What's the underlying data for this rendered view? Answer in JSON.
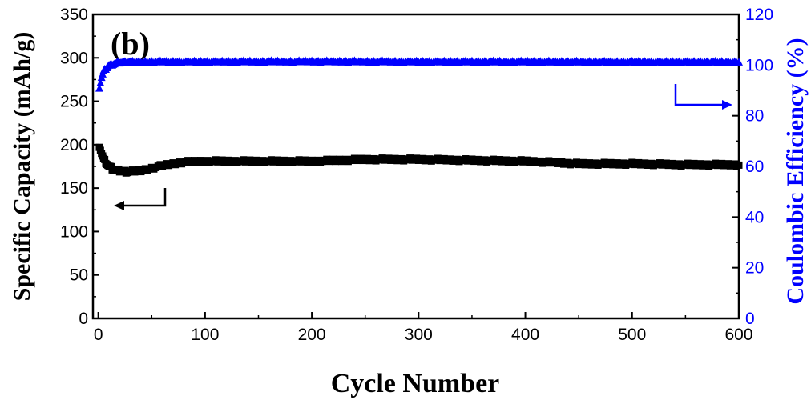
{
  "chart_data": {
    "type": "scatter",
    "panel_label": "(b)",
    "xlabel": "Cycle Number",
    "ylabel_left": "Specific Capacity (mAh/g)",
    "ylabel_right": "Coulombic Efficiency (%)",
    "xlim": [
      -5,
      600
    ],
    "ylim_left": [
      0,
      350
    ],
    "ylim_right": [
      0,
      120
    ],
    "x_ticks": [
      "0",
      "100",
      "200",
      "300",
      "400",
      "500",
      "600"
    ],
    "y_left_ticks": [
      "0",
      "50",
      "100",
      "150",
      "200",
      "250",
      "300",
      "350"
    ],
    "y_right_ticks": [
      "0",
      "20",
      "40",
      "60",
      "80",
      "100",
      "120"
    ],
    "colors": {
      "capacity": "#000000",
      "efficiency": "#0000ff",
      "axes": "#000000"
    },
    "series": [
      {
        "marker": "square",
        "axis": "left",
        "x": [
          1,
          3,
          5,
          8,
          10,
          15,
          20,
          25,
          30,
          40,
          50,
          60,
          70,
          80,
          100,
          120,
          150,
          200,
          250,
          300,
          350,
          400,
          420,
          450,
          500,
          550,
          600
        ],
        "y": [
          198,
          190,
          183,
          178,
          175,
          171,
          170,
          169,
          169,
          170,
          173,
          176,
          178,
          180,
          181,
          181,
          181,
          181,
          183,
          183,
          182,
          181,
          180,
          178,
          178,
          177,
          177
        ]
      },
      {
        "marker": "triangle",
        "axis": "right",
        "x": [
          1,
          3,
          5,
          8,
          10,
          15,
          20,
          30,
          50,
          100,
          200,
          300,
          400,
          500,
          600
        ],
        "y": [
          91,
          95,
          97.5,
          99,
          99.8,
          100.5,
          101,
          101.2,
          101.3,
          101.3,
          101.4,
          101.3,
          101.3,
          101.2,
          101.2
        ]
      }
    ],
    "grid": false,
    "annotations": [
      "arrow pointing left to capacity axis",
      "arrow pointing right to efficiency axis"
    ]
  }
}
